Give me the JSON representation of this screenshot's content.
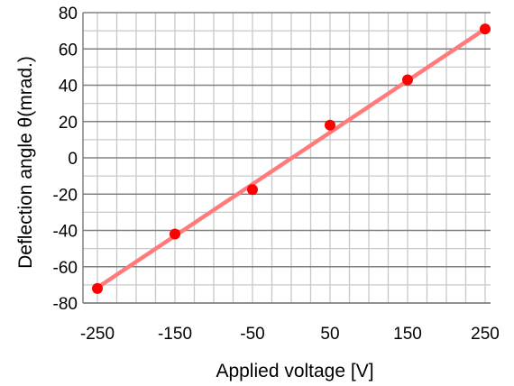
{
  "chart_data": {
    "type": "scatter",
    "title": "",
    "xlabel": "Applied voltage [V]",
    "ylabel": "Deflection angle θ(mrad.)",
    "xlim": [
      -250,
      250
    ],
    "ylim": [
      -80,
      80
    ],
    "x_ticks": [
      -250,
      -150,
      -50,
      50,
      150,
      250
    ],
    "y_ticks": [
      80,
      60,
      40,
      20,
      0,
      -20,
      -40,
      -60,
      -80
    ],
    "x_tick_labels": [
      "-250",
      "-150",
      "-50",
      "50",
      "150",
      "250"
    ],
    "y_tick_labels": [
      "80",
      "60",
      "40",
      "20",
      "0",
      "-20",
      "-40",
      "-60",
      "-80"
    ],
    "grid": true,
    "series": [
      {
        "kind": "points",
        "color": "#ff0000",
        "x": [
          -250,
          -150,
          -50,
          50,
          150,
          250
        ],
        "y": [
          -72,
          -42,
          -17.5,
          18,
          43,
          71
        ]
      },
      {
        "kind": "fit-line",
        "color": "#ff7b7b",
        "x": [
          -250,
          250
        ],
        "y": [
          -71.5,
          71
        ]
      }
    ]
  }
}
